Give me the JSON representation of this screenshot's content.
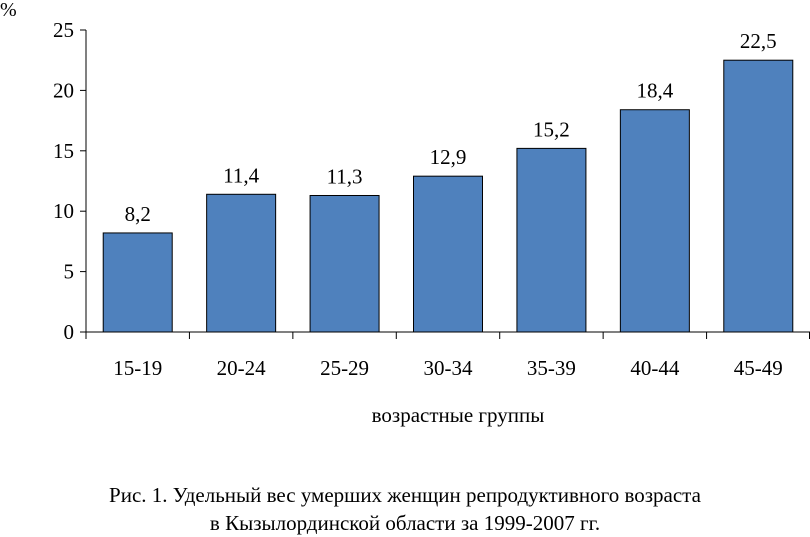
{
  "chart_data": {
    "type": "bar",
    "categories": [
      "15-19",
      "20-24",
      "25-29",
      "30-34",
      "35-39",
      "40-44",
      "45-49"
    ],
    "values": [
      8.2,
      11.4,
      11.3,
      12.9,
      15.2,
      18.4,
      22.5
    ],
    "value_labels": [
      "8,2",
      "11,4",
      "11,3",
      "12,9",
      "15,2",
      "18,4",
      "22,5"
    ],
    "ylabel": "%",
    "xlabel": "возрастные группы",
    "ylim": [
      0,
      25
    ],
    "yticks": [
      0,
      5,
      10,
      15,
      20,
      25
    ],
    "bar_color": "#4f81bd",
    "grid": false,
    "legend": "none"
  },
  "caption": {
    "line1": "Рис. 1. Удельный вес умерших женщин репродуктивного возраста",
    "line2": "в Кызылординской области за 1999-2007 гг."
  }
}
